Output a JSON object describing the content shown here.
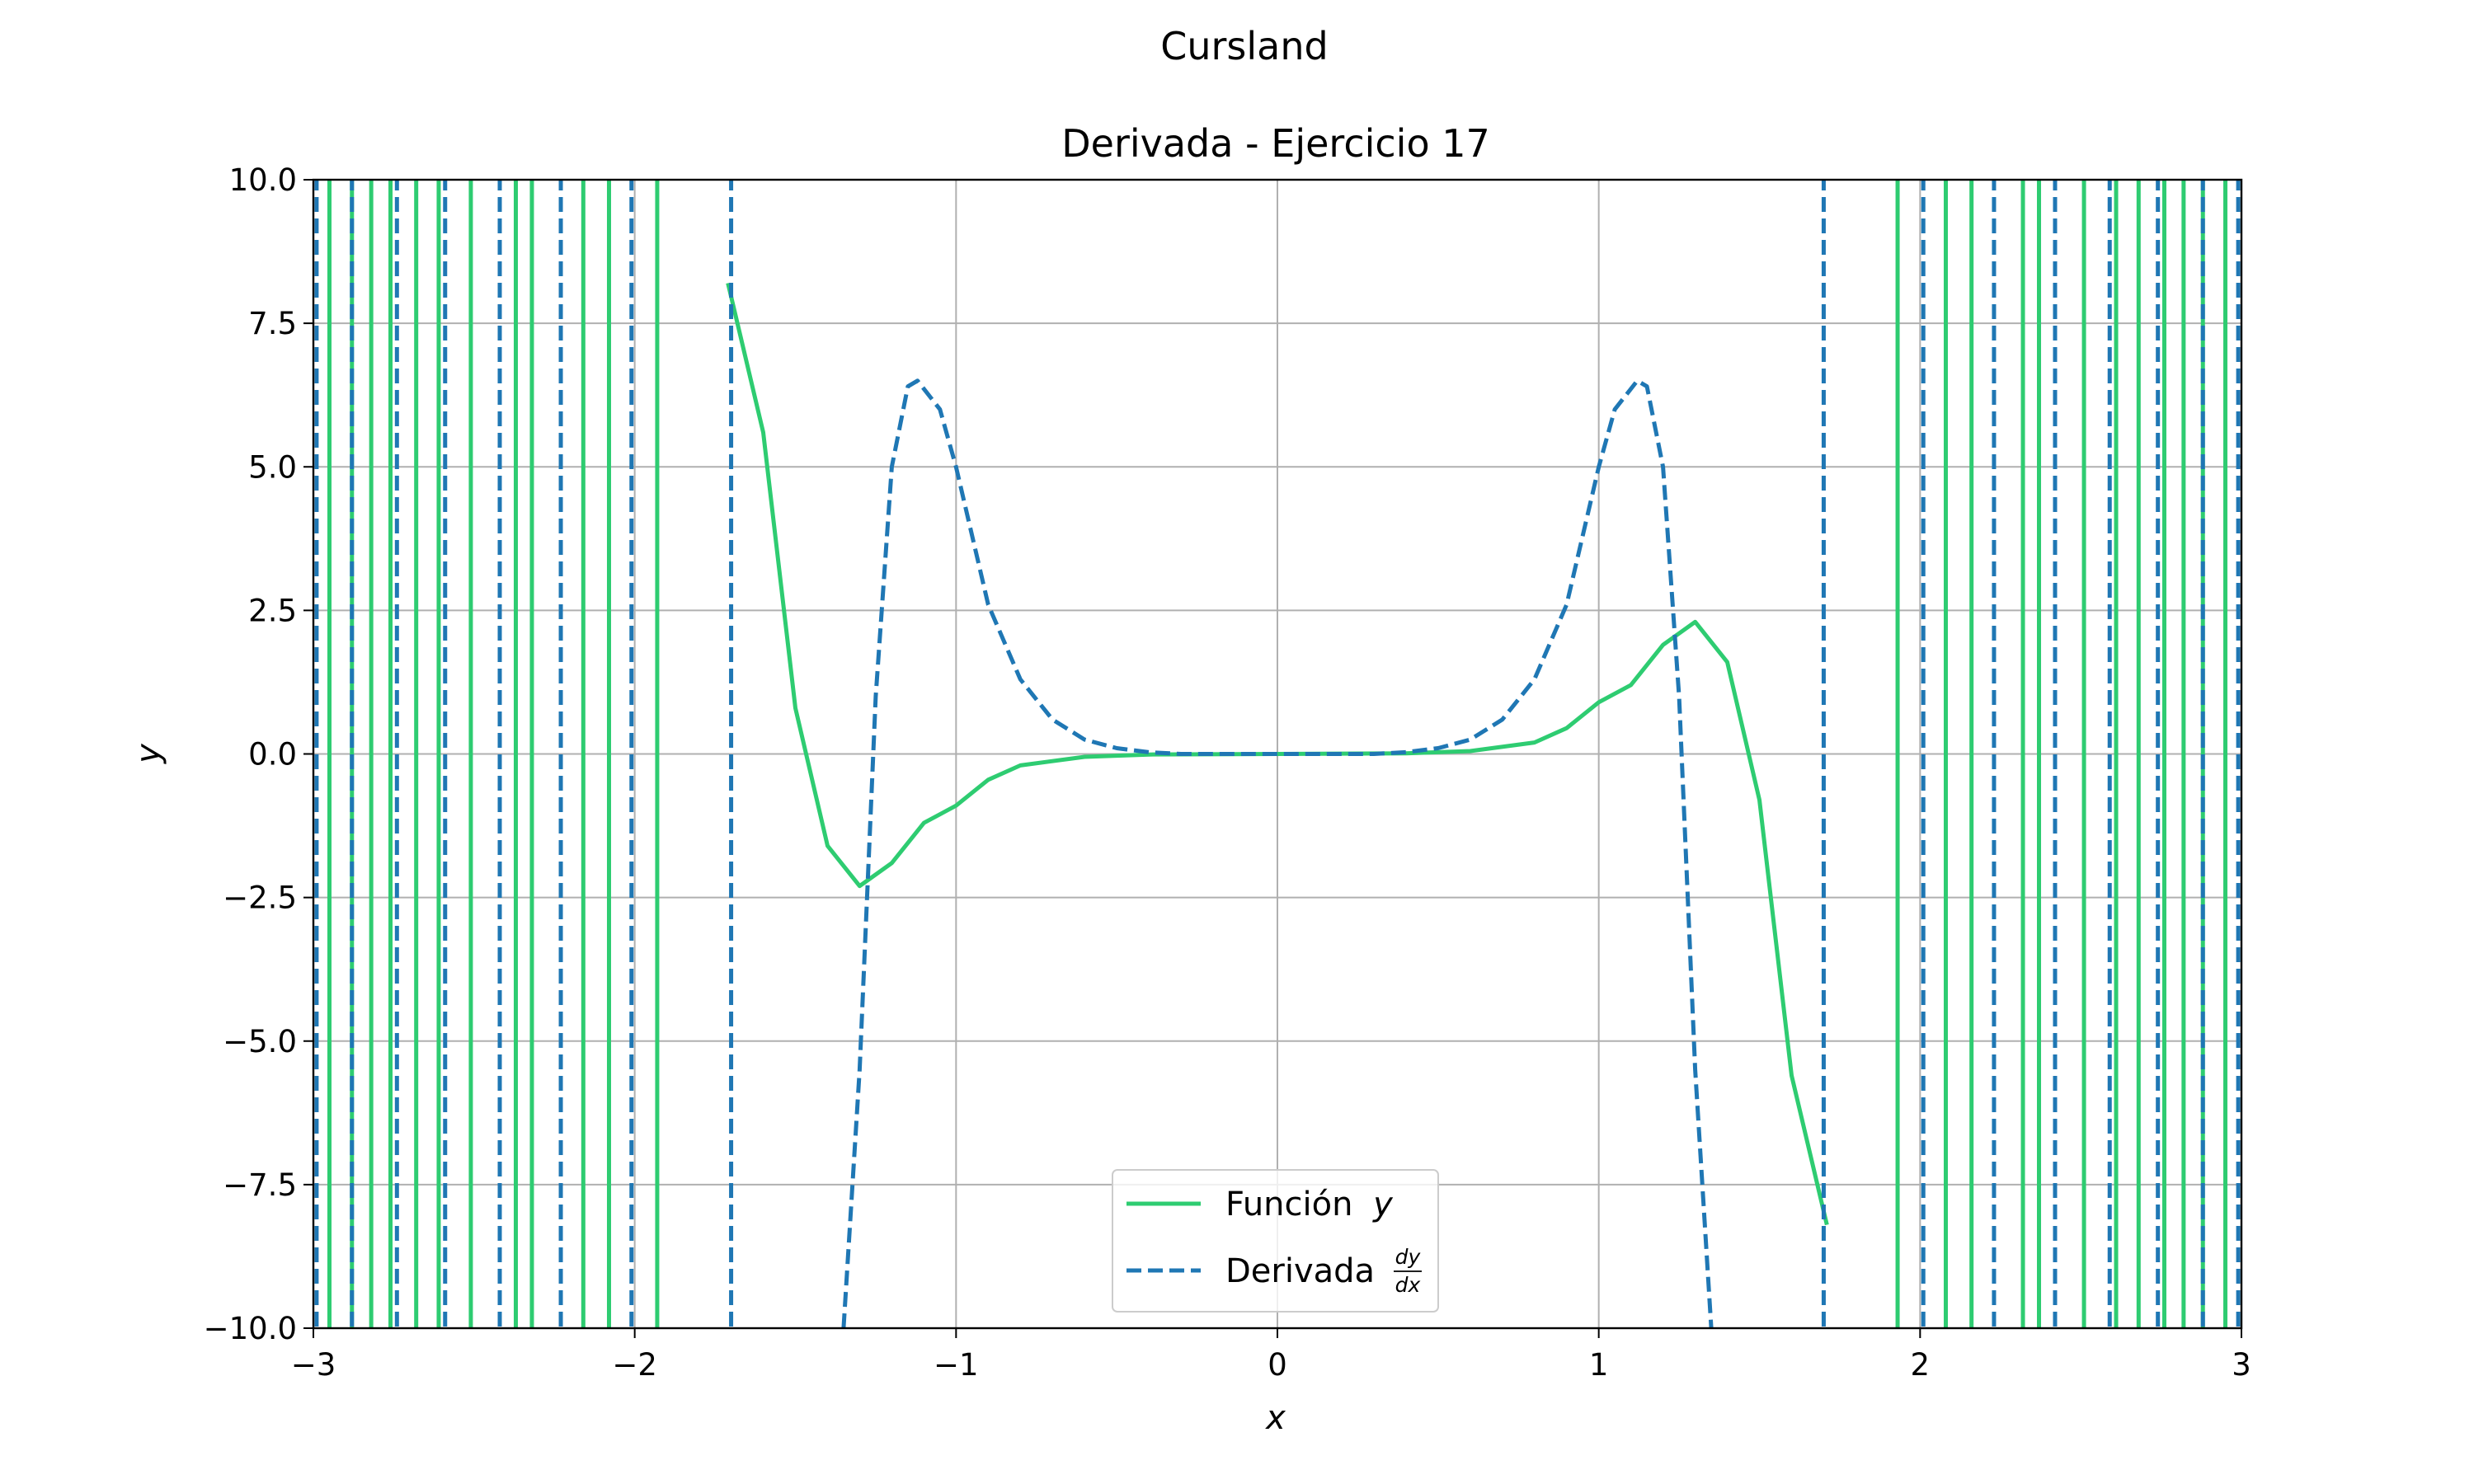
{
  "figure": {
    "suptitle": "Cursland"
  },
  "chart_data": {
    "type": "line",
    "title": "Derivada - Ejercicio 17",
    "xlabel": "x",
    "ylabel": "y",
    "xlim": [
      -3,
      3
    ],
    "ylim": [
      -10,
      10
    ],
    "grid": true,
    "legend_position": "lower center",
    "xticks": [
      -3,
      -2,
      -1,
      0,
      1,
      2,
      3
    ],
    "xtick_labels": [
      "−3",
      "−2",
      "−1",
      "0",
      "1",
      "2",
      "3"
    ],
    "yticks": [
      -10,
      -7.5,
      -5,
      -2.5,
      0,
      2.5,
      5,
      7.5,
      10
    ],
    "ytick_labels": [
      "−10.0",
      "−7.5",
      "−5.0",
      "−2.5",
      "0.0",
      "2.5",
      "5.0",
      "7.5",
      "10.0"
    ],
    "series": [
      {
        "name": "Función y",
        "legend_label": "Función",
        "legend_symbol": "y",
        "color": "#2ecc71",
        "style": "solid",
        "x": [
          -1.71,
          -1.6,
          -1.5,
          -1.4,
          -1.3,
          -1.2,
          -1.1,
          -1.0,
          -0.9,
          -0.8,
          -0.6,
          -0.4,
          0.0,
          0.4,
          0.6,
          0.8,
          0.9,
          1.0,
          1.1,
          1.2,
          1.3,
          1.4,
          1.5,
          1.6,
          1.71
        ],
        "y": [
          8.2,
          5.6,
          0.8,
          -1.6,
          -2.3,
          -1.9,
          -1.2,
          -0.9,
          -0.45,
          -0.2,
          -0.05,
          -0.01,
          0.0,
          0.01,
          0.05,
          0.2,
          0.45,
          0.9,
          1.2,
          1.9,
          2.3,
          1.6,
          -0.8,
          -5.6,
          -8.2
        ],
        "approximate_crossings": [
          -2.95,
          -2.88,
          -2.82,
          -2.76,
          -2.68,
          -2.61,
          -2.51,
          -2.37,
          -2.32,
          -2.16,
          -2.08,
          -1.93,
          1.93,
          2.08,
          2.16,
          2.32,
          2.37,
          2.51,
          2.61,
          2.68,
          2.76,
          2.82,
          2.88,
          2.95
        ]
      },
      {
        "name": "Derivada dy/dx",
        "legend_label": "Derivada",
        "legend_numerator": "dy",
        "legend_denominator": "dx",
        "color": "#1f77b4",
        "style": "dashed",
        "x": [
          -1.35,
          -1.3,
          -1.25,
          -1.2,
          -1.15,
          -1.12,
          -1.05,
          -1.0,
          -0.9,
          -0.8,
          -0.7,
          -0.6,
          -0.5,
          -0.4,
          -0.3,
          0.0,
          0.3,
          0.4,
          0.5,
          0.6,
          0.7,
          0.8,
          0.9,
          1.0,
          1.05,
          1.12,
          1.15,
          1.2,
          1.25,
          1.3,
          1.35
        ],
        "y": [
          -10,
          -5.5,
          1.0,
          5.0,
          6.4,
          6.5,
          6.0,
          5.0,
          2.6,
          1.3,
          0.6,
          0.25,
          0.1,
          0.03,
          0.0,
          0.0,
          0.0,
          0.03,
          0.1,
          0.25,
          0.6,
          1.3,
          2.6,
          5.0,
          6.0,
          6.5,
          6.4,
          5.0,
          1.0,
          -5.5,
          -10
        ],
        "approximate_crossings": [
          -2.99,
          -2.88,
          -2.74,
          -2.59,
          -2.42,
          -2.23,
          -2.01,
          -1.7,
          1.7,
          2.01,
          2.23,
          2.42,
          2.59,
          2.74,
          2.88,
          2.99
        ]
      }
    ]
  }
}
